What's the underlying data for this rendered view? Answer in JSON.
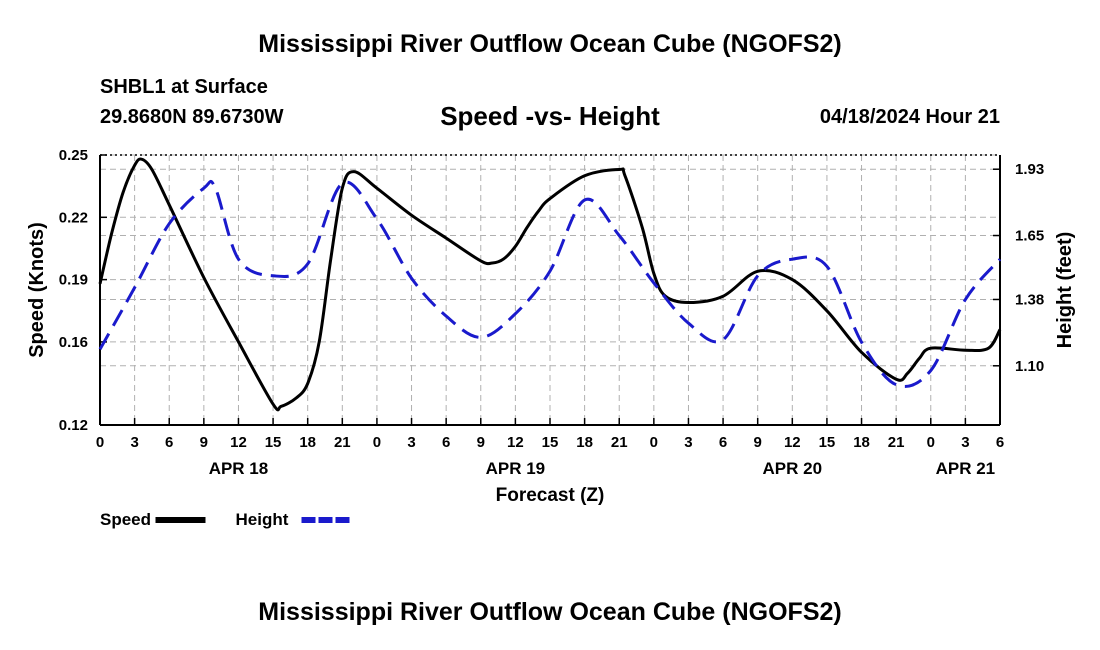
{
  "header": {
    "title": "Mississippi River Outflow Ocean Cube (NGOFS2)",
    "station": "SHBL1 at Surface",
    "coords": "29.8680N  89.6730W",
    "subtitle": "Speed -vs- Height",
    "datetime": "04/18/2024 Hour 21"
  },
  "footer": {
    "title": "Mississippi River Outflow Ocean Cube (NGOFS2)"
  },
  "chart_data": {
    "type": "line",
    "title": "Speed -vs- Height",
    "xlabel": "Forecast (Z)",
    "ylabel_left": "Speed (Knots)",
    "ylabel_right": "Height (feet)",
    "x_range_hours": [
      0,
      78
    ],
    "x_tick_hours": [
      0,
      3,
      6,
      9,
      12,
      15,
      18,
      21,
      24,
      27,
      30,
      33,
      36,
      39,
      42,
      45,
      48,
      51,
      54,
      57,
      60,
      63,
      66,
      69,
      72,
      75,
      78
    ],
    "x_tick_labels": [
      "0",
      "3",
      "6",
      "9",
      "12",
      "15",
      "18",
      "21",
      "0",
      "3",
      "6",
      "9",
      "12",
      "15",
      "18",
      "21",
      "0",
      "3",
      "6",
      "9",
      "12",
      "15",
      "18",
      "21",
      "0",
      "3",
      "6"
    ],
    "date_labels": [
      {
        "hour": 12,
        "label": "APR 18"
      },
      {
        "hour": 36,
        "label": "APR 19"
      },
      {
        "hour": 60,
        "label": "APR 20"
      },
      {
        "hour": 75,
        "label": "APR 21"
      }
    ],
    "ylim_left": [
      0.12,
      0.25
    ],
    "yticks_left": [
      0.12,
      0.16,
      0.19,
      0.22,
      0.25
    ],
    "ytick_labels_left": [
      "0.12",
      "0.16",
      "0.19",
      "0.22",
      "0.25"
    ],
    "ylim_right": [
      0.85,
      1.99
    ],
    "yticks_right": [
      1.1,
      1.38,
      1.65,
      1.93
    ],
    "ytick_labels_right": [
      "1.10",
      "1.38",
      "1.65",
      "1.93"
    ],
    "grid": true,
    "series": [
      {
        "name": "Speed",
        "color": "#000000",
        "dash": "solid",
        "axis": "left",
        "x": [
          0,
          1,
          2,
          3,
          3.6,
          4.5,
          6,
          9,
          12,
          15,
          15.7,
          17,
          18,
          19,
          20,
          21,
          22,
          24,
          27,
          30,
          33,
          34,
          35,
          36,
          37,
          38,
          39,
          42,
          45,
          45.5,
          47,
          48,
          49,
          51,
          54,
          57,
          60,
          63,
          66,
          69,
          70,
          71,
          72,
          75,
          77,
          78
        ],
        "values": [
          0.188,
          0.212,
          0.232,
          0.245,
          0.248,
          0.243,
          0.226,
          0.191,
          0.16,
          0.13,
          0.129,
          0.133,
          0.14,
          0.16,
          0.2,
          0.234,
          0.242,
          0.234,
          0.221,
          0.21,
          0.199,
          0.198,
          0.2,
          0.206,
          0.215,
          0.223,
          0.229,
          0.24,
          0.243,
          0.24,
          0.215,
          0.193,
          0.182,
          0.179,
          0.182,
          0.194,
          0.19,
          0.175,
          0.155,
          0.142,
          0.145,
          0.152,
          0.157,
          0.156,
          0.157,
          0.166
        ]
      },
      {
        "name": "Height",
        "color": "#1a1acc",
        "dash": "dashed",
        "axis": "right",
        "x": [
          0,
          3,
          6,
          9,
          10,
          12,
          15,
          18,
          21,
          24,
          27,
          30,
          33,
          36,
          39,
          42,
          45,
          48,
          51,
          54,
          57,
          60,
          63,
          66,
          69,
          72,
          75,
          78
        ],
        "values": [
          1.17,
          1.43,
          1.7,
          1.85,
          1.85,
          1.55,
          1.48,
          1.53,
          1.87,
          1.72,
          1.47,
          1.31,
          1.22,
          1.32,
          1.5,
          1.8,
          1.65,
          1.45,
          1.28,
          1.21,
          1.48,
          1.55,
          1.52,
          1.2,
          1.02,
          1.08,
          1.38,
          1.55
        ]
      }
    ],
    "legend": [
      {
        "label": "Speed",
        "color": "#000000",
        "dash": "solid"
      },
      {
        "label": "Height",
        "color": "#1a1acc",
        "dash": "dashed"
      }
    ],
    "legend_placement": "bottom-left"
  }
}
